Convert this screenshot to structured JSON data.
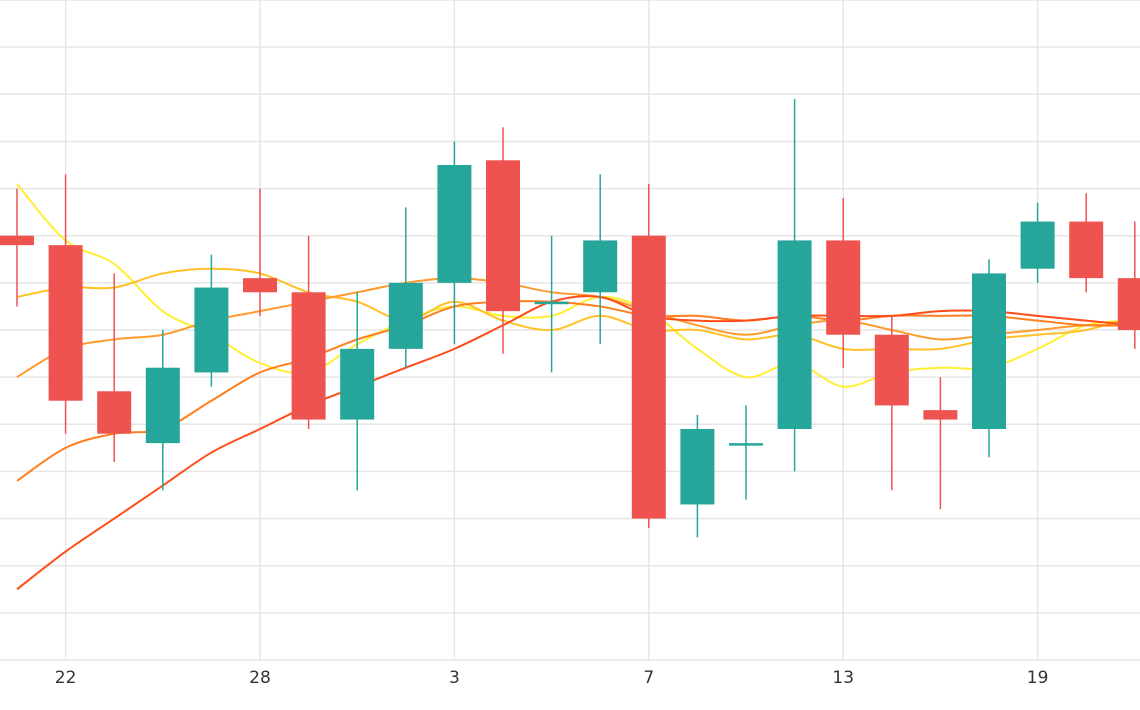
{
  "chart_data": {
    "type": "candlestick",
    "title": "",
    "xlabel": "",
    "ylabel": "",
    "x_ticks": [
      {
        "index": 1,
        "label": "22"
      },
      {
        "index": 5,
        "label": "28"
      },
      {
        "index": 9,
        "label": "3"
      },
      {
        "index": 13,
        "label": "7"
      },
      {
        "index": 17,
        "label": "13"
      },
      {
        "index": 21,
        "label": "19"
      }
    ],
    "ylim": [
      0,
      14
    ],
    "grid": true,
    "legend": "none",
    "candles": [
      {
        "index": 0,
        "open": 9.0,
        "high": 10.0,
        "low": 7.5,
        "close": 8.8
      },
      {
        "index": 1,
        "open": 8.8,
        "high": 10.3,
        "low": 4.8,
        "close": 5.5
      },
      {
        "index": 2,
        "open": 5.7,
        "high": 8.2,
        "low": 4.2,
        "close": 4.8
      },
      {
        "index": 3,
        "open": 4.6,
        "high": 7.0,
        "low": 3.6,
        "close": 6.2
      },
      {
        "index": 4,
        "open": 6.1,
        "high": 8.6,
        "low": 5.8,
        "close": 7.9
      },
      {
        "index": 5,
        "open": 8.1,
        "high": 10.0,
        "low": 7.3,
        "close": 7.8
      },
      {
        "index": 6,
        "open": 7.8,
        "high": 9.0,
        "low": 4.9,
        "close": 5.1
      },
      {
        "index": 7,
        "open": 5.1,
        "high": 7.8,
        "low": 3.6,
        "close": 6.6
      },
      {
        "index": 8,
        "open": 6.6,
        "high": 9.6,
        "low": 6.2,
        "close": 8.0
      },
      {
        "index": 9,
        "open": 8.0,
        "high": 11.0,
        "low": 6.7,
        "close": 10.5
      },
      {
        "index": 10,
        "open": 10.6,
        "high": 11.3,
        "low": 6.5,
        "close": 7.4
      },
      {
        "index": 11,
        "open": 7.6,
        "high": 9.0,
        "low": 6.1,
        "close": 7.6
      },
      {
        "index": 12,
        "open": 7.8,
        "high": 10.3,
        "low": 6.7,
        "close": 8.9
      },
      {
        "index": 13,
        "open": 9.0,
        "high": 10.1,
        "low": 2.8,
        "close": 3.0
      },
      {
        "index": 14,
        "open": 3.3,
        "high": 5.2,
        "low": 2.6,
        "close": 4.9
      },
      {
        "index": 15,
        "open": 4.6,
        "high": 5.4,
        "low": 3.4,
        "close": 4.6
      },
      {
        "index": 16,
        "open": 4.9,
        "high": 11.9,
        "low": 4.0,
        "close": 8.9
      },
      {
        "index": 17,
        "open": 8.9,
        "high": 9.8,
        "low": 6.2,
        "close": 6.9
      },
      {
        "index": 18,
        "open": 6.9,
        "high": 7.3,
        "low": 3.6,
        "close": 5.4
      },
      {
        "index": 19,
        "open": 5.3,
        "high": 6.0,
        "low": 3.2,
        "close": 5.1
      },
      {
        "index": 20,
        "open": 4.9,
        "high": 8.5,
        "low": 4.3,
        "close": 8.2
      },
      {
        "index": 21,
        "open": 8.3,
        "high": 9.7,
        "low": 8.0,
        "close": 9.3
      },
      {
        "index": 22,
        "open": 9.3,
        "high": 9.9,
        "low": 7.8,
        "close": 8.1
      },
      {
        "index": 23,
        "open": 8.1,
        "high": 9.3,
        "low": 6.6,
        "close": 7.0
      }
    ],
    "series": [
      {
        "color": "#ffee33",
        "values": [
          10.1,
          8.9,
          8.4,
          7.4,
          6.9,
          6.3,
          6.1,
          6.7,
          7.2,
          7.5,
          7.3,
          7.3,
          7.7,
          7.4,
          6.6,
          6.0,
          6.3,
          5.8,
          6.1,
          6.2,
          6.2,
          6.6,
          7.1,
          7.2
        ]
      },
      {
        "color": "#ffc125",
        "values": [
          7.7,
          7.9,
          7.9,
          8.2,
          8.3,
          8.2,
          7.8,
          7.6,
          7.2,
          7.6,
          7.2,
          7.0,
          7.3,
          7.0,
          7.0,
          6.8,
          6.9,
          6.6,
          6.6,
          6.6,
          6.8,
          6.9,
          7.0,
          7.3
        ]
      },
      {
        "color": "#ff9a2e",
        "values": [
          6.0,
          6.6,
          6.8,
          6.9,
          7.2,
          7.4,
          7.6,
          7.8,
          8.0,
          8.1,
          8.0,
          7.8,
          7.7,
          7.4,
          7.1,
          6.9,
          7.1,
          7.2,
          7.0,
          6.8,
          6.9,
          7.0,
          7.1,
          7.1
        ]
      },
      {
        "color": "#ff7f1f",
        "values": [
          3.8,
          4.5,
          4.8,
          4.9,
          5.5,
          6.1,
          6.4,
          6.8,
          7.1,
          7.5,
          7.6,
          7.6,
          7.5,
          7.3,
          7.3,
          7.2,
          7.3,
          7.2,
          7.3,
          7.3,
          7.3,
          7.2,
          7.1,
          7.1
        ]
      },
      {
        "color": "#ff4d1a",
        "values": [
          1.5,
          2.3,
          3.0,
          3.7,
          4.4,
          4.9,
          5.4,
          5.8,
          6.2,
          6.6,
          7.1,
          7.6,
          7.7,
          7.3,
          7.2,
          7.2,
          7.3,
          7.3,
          7.3,
          7.4,
          7.4,
          7.3,
          7.2,
          7.1
        ]
      }
    ],
    "colors": {
      "up": "#26a69a",
      "down": "#ef5350",
      "grid": "#e6e6e6"
    }
  }
}
